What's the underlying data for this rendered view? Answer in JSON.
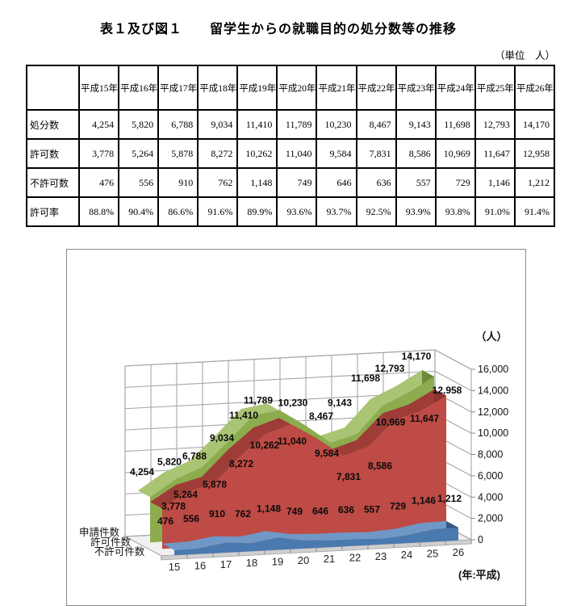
{
  "title": "表１及び図１　　留学生からの就職目的の処分数等の推移",
  "unit_note": "（単位　人）",
  "table": {
    "col_headers": [
      "平成15年",
      "平成16年",
      "平成17年",
      "平成18年",
      "平成19年",
      "平成20年",
      "平成21年",
      "平成22年",
      "平成23年",
      "平成24年",
      "平成25年",
      "平成26年"
    ],
    "rows": [
      {
        "label": "処分数",
        "values": [
          "4,254",
          "5,820",
          "6,788",
          "9,034",
          "11,410",
          "11,789",
          "10,230",
          "8,467",
          "9,143",
          "11,698",
          "12,793",
          "14,170"
        ]
      },
      {
        "label": "許可数",
        "values": [
          "3,778",
          "5,264",
          "5,878",
          "8,272",
          "10,262",
          "11,040",
          "9,584",
          "7,831",
          "8,586",
          "10,969",
          "11,647",
          "12,958"
        ]
      },
      {
        "label": "不許可数",
        "values": [
          "476",
          "556",
          "910",
          "762",
          "1,148",
          "749",
          "646",
          "636",
          "557",
          "729",
          "1,146",
          "1,212"
        ]
      },
      {
        "label": "許可率",
        "values": [
          "88.8%",
          "90.4%",
          "86.6%",
          "91.6%",
          "89.9%",
          "93.6%",
          "93.7%",
          "92.5%",
          "93.9%",
          "93.8%",
          "91.0%",
          "91.4%"
        ]
      }
    ]
  },
  "chart_data": {
    "type": "area",
    "projection": "3d",
    "title": "",
    "value_axis_label": "（人）",
    "category_axis_label": "(年:平成)",
    "categories": [
      "15",
      "16",
      "17",
      "18",
      "19",
      "20",
      "21",
      "22",
      "23",
      "24",
      "25",
      "26"
    ],
    "ylim": [
      0,
      16000
    ],
    "ytick_step": 2000,
    "ytick_labels": [
      "0",
      "2,000",
      "4,000",
      "6,000",
      "8,000",
      "10,000",
      "12,000",
      "14,000",
      "16,000"
    ],
    "grid": true,
    "legend_position": "series-axis-left",
    "series": [
      {
        "name": "申請件数",
        "depth": "back",
        "face_color": "#8CAC4E",
        "top_color": "#A9C472",
        "cap_color": "#6D8B3A",
        "values": [
          4254,
          5820,
          6788,
          9034,
          11410,
          11789,
          10230,
          8467,
          9143,
          11698,
          12793,
          14170
        ],
        "labels": [
          "4,254",
          "5,820",
          "6,788",
          "9,034",
          "11,410",
          "11,789",
          "10,230",
          "8,467",
          "9,143",
          "11,698",
          "12,793",
          "14,170"
        ]
      },
      {
        "name": "許可件数",
        "depth": "middle",
        "face_color": "#BE4B45",
        "top_color": "#9E3C37",
        "cap_color": "#8E3430",
        "values": [
          3778,
          5264,
          5878,
          8272,
          10262,
          11040,
          9584,
          7831,
          8586,
          10969,
          11647,
          12958
        ],
        "labels": [
          "3,778",
          "5,264",
          "5,878",
          "8,272",
          "10,262",
          "11,040",
          "9,584",
          "7,831",
          "8,586",
          "10,969",
          "11,647",
          "12,958"
        ]
      },
      {
        "name": "不許可件数",
        "depth": "front",
        "face_color": "#4A79AF",
        "top_color": "#7098C6",
        "cap_color": "#37587E",
        "values": [
          476,
          556,
          910,
          762,
          1148,
          749,
          646,
          636,
          557,
          729,
          1146,
          1212
        ],
        "labels": [
          "476",
          "556",
          "910",
          "762",
          "1,148",
          "749",
          "646",
          "636",
          "557",
          "729",
          "1,146",
          "1,212"
        ]
      }
    ]
  }
}
